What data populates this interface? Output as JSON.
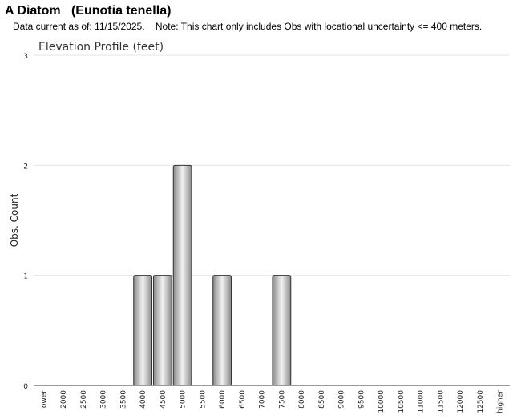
{
  "page": {
    "title": "A Diatom   (Eunotia tenella)",
    "note": "Data current as of: 11/15/2025.    Note: This chart only includes Obs with locational uncertainty <= 400 meters."
  },
  "chart_data": {
    "type": "bar",
    "title": "Elevation Profile (feet)",
    "xlabel": "",
    "ylabel": "Obs. Count",
    "ylim": [
      0,
      3
    ],
    "yticks": [
      0,
      1,
      2,
      3
    ],
    "grid": true,
    "legend": "none",
    "categories": [
      "lower",
      "2000",
      "2500",
      "3000",
      "3500",
      "4000",
      "4500",
      "5000",
      "5500",
      "6000",
      "6500",
      "7000",
      "7500",
      "8000",
      "8500",
      "9000",
      "9500",
      "10000",
      "10500",
      "11000",
      "11500",
      "12000",
      "12500",
      "higher"
    ],
    "values": [
      0,
      0,
      0,
      0,
      0,
      1,
      1,
      2,
      0,
      1,
      0,
      0,
      1,
      0,
      0,
      0,
      0,
      0,
      0,
      0,
      0,
      0,
      0,
      0
    ],
    "colors": {
      "bar_dark": "#8a8a8a",
      "bar_light": "#f2f2f2",
      "bar_stroke": "#333333",
      "grid": "#e6e6e6",
      "axis": "#333333"
    }
  }
}
